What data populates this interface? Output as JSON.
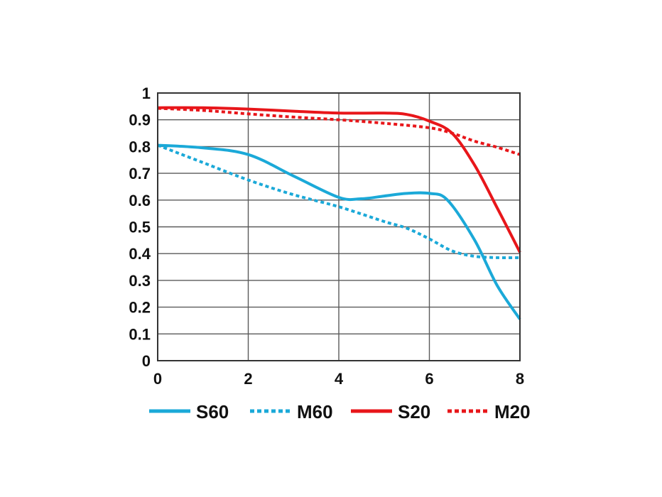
{
  "chart_data": {
    "type": "line",
    "title": "",
    "xlabel": "",
    "ylabel": "",
    "xlim": [
      0,
      8
    ],
    "ylim": [
      0,
      1
    ],
    "xticks": [
      "0",
      "2",
      "4",
      "6",
      "8"
    ],
    "yticks": [
      "0",
      "0.1",
      "0.2",
      "0.3",
      "0.4",
      "0.5",
      "0.6",
      "0.7",
      "0.8",
      "0.9",
      "1"
    ],
    "grid": true,
    "legend_position": "bottom",
    "series": [
      {
        "name": "S60",
        "style": "solid",
        "color": "#1ba9d8",
        "x": [
          0,
          1,
          2,
          3,
          4,
          4.5,
          5,
          5.5,
          6,
          6.4,
          7,
          7.5,
          8
        ],
        "y": [
          0.805,
          0.795,
          0.77,
          0.69,
          0.61,
          0.605,
          0.615,
          0.625,
          0.625,
          0.6,
          0.45,
          0.28,
          0.155
        ]
      },
      {
        "name": "M60",
        "style": "dotted",
        "color": "#1ba9d8",
        "x": [
          0,
          1,
          2,
          3,
          4,
          5,
          5.5,
          6,
          6.5,
          7,
          7.5,
          8
        ],
        "y": [
          0.805,
          0.74,
          0.675,
          0.62,
          0.575,
          0.52,
          0.495,
          0.455,
          0.41,
          0.39,
          0.385,
          0.385
        ]
      },
      {
        "name": "S20",
        "style": "solid",
        "color": "#e8161a",
        "x": [
          0,
          1,
          2,
          3,
          4,
          5,
          5.5,
          6,
          6.5,
          7,
          7.5,
          8
        ],
        "y": [
          0.945,
          0.945,
          0.94,
          0.932,
          0.925,
          0.925,
          0.92,
          0.895,
          0.85,
          0.73,
          0.57,
          0.405
        ]
      },
      {
        "name": "M20",
        "style": "dotted",
        "color": "#e8161a",
        "x": [
          0,
          1,
          2,
          3,
          4,
          5,
          6,
          6.5,
          7,
          7.5,
          8
        ],
        "y": [
          0.943,
          0.935,
          0.922,
          0.91,
          0.9,
          0.887,
          0.87,
          0.85,
          0.82,
          0.797,
          0.77
        ]
      }
    ]
  }
}
